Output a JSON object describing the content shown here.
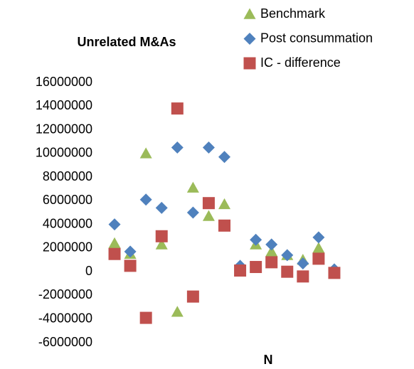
{
  "chart_data": {
    "type": "scatter",
    "title": "Unrelated M&As",
    "x_label": "N",
    "categories": [
      null,
      null,
      null,
      null,
      null,
      null,
      null,
      null,
      null,
      null,
      null,
      null,
      null,
      null,
      null
    ],
    "series": [
      {
        "name": "Benchmark",
        "color": "#9bbb59",
        "marker": "triangle",
        "values": [
          2400000,
          1500000,
          10000000,
          2300000,
          -3400000,
          7100000,
          4700000,
          5700000,
          500000,
          2300000,
          1700000,
          1400000,
          1000000,
          2000000,
          100000
        ]
      },
      {
        "name": "Post consummation",
        "color": "#4f81bd",
        "marker": "diamond",
        "values": [
          4000000,
          1700000,
          6100000,
          5400000,
          10500000,
          5000000,
          10500000,
          9700000,
          500000,
          2700000,
          2300000,
          1400000,
          700000,
          2900000,
          200000
        ]
      },
      {
        "name": "IC - difference",
        "color": "#c0504d",
        "marker": "square",
        "values": [
          1500000,
          500000,
          -3900000,
          3000000,
          13800000,
          -2100000,
          5800000,
          3900000,
          100000,
          400000,
          800000,
          0,
          -400000,
          1100000,
          -100000
        ]
      }
    ],
    "ylim": [
      -6000000,
      16000000
    ],
    "yticks": [
      -6000000,
      -4000000,
      -2000000,
      0,
      2000000,
      4000000,
      6000000,
      8000000,
      10000000,
      12000000,
      14000000,
      16000000
    ],
    "grid": false
  }
}
